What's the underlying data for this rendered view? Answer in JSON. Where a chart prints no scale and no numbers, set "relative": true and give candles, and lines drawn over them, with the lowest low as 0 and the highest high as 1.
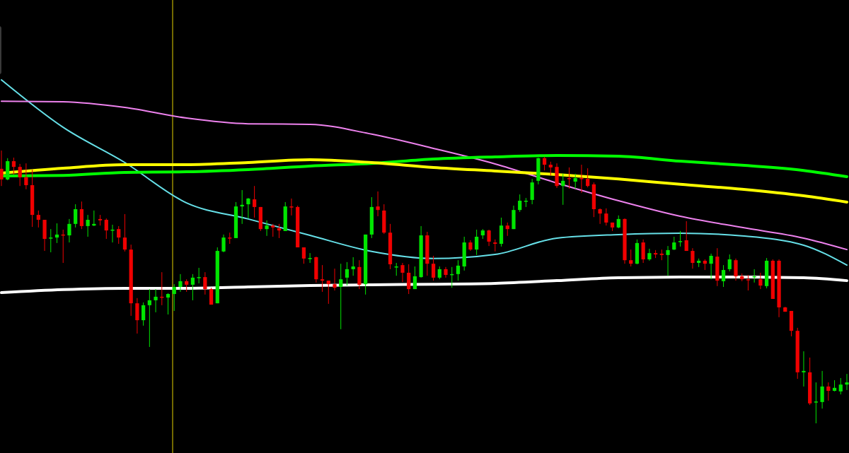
{
  "chart_data": {
    "type": "candlestick",
    "relative": true,
    "categories": [
      null,
      null,
      null,
      null,
      null,
      null,
      null,
      null,
      null,
      null,
      null,
      null,
      null,
      null,
      null,
      null,
      null,
      null,
      null,
      null,
      null,
      null,
      null,
      null,
      null,
      null,
      null,
      null,
      null,
      null,
      null,
      null,
      null,
      null,
      null,
      null,
      null,
      null,
      null,
      null,
      null,
      null,
      null,
      null,
      null,
      null,
      null,
      null,
      null,
      null,
      null,
      null,
      null,
      null,
      null,
      null,
      null,
      null,
      null,
      null,
      null,
      null,
      null,
      null,
      null,
      null,
      null,
      null,
      null,
      null,
      null,
      null,
      null,
      null,
      null,
      null,
      null,
      null,
      null,
      null,
      null,
      null,
      null,
      null,
      null,
      null,
      null,
      null,
      null,
      null,
      null,
      null,
      null,
      null,
      null,
      null,
      null,
      null,
      null,
      null,
      null,
      null,
      null,
      null,
      null,
      null,
      null,
      null,
      null,
      null,
      null,
      null,
      null,
      null,
      null,
      null,
      null,
      null,
      null,
      null,
      null,
      null,
      null,
      null,
      null,
      null,
      null,
      null,
      null,
      null,
      null,
      null,
      null,
      null,
      null,
      null,
      null,
      null
    ],
    "ohlc": [
      [
        0.933,
        1,
        0.87,
        0.894
      ],
      [
        0.894,
        0.972,
        0.891,
        0.961
      ],
      [
        0.961,
        0.974,
        0.912,
        0.94
      ],
      [
        0.94,
        0.951,
        0.87,
        0.902
      ],
      [
        0.902,
        0.953,
        0.858,
        0.873
      ],
      [
        0.873,
        0.93,
        0.72,
        0.764
      ],
      [
        0.764,
        0.78,
        0.718,
        0.746
      ],
      [
        0.746,
        0.746,
        0.632,
        0.676
      ],
      [
        0.679,
        0.712,
        0.627,
        0.681
      ],
      [
        0.681,
        0.733,
        0.661,
        0.692
      ],
      [
        0.692,
        0.71,
        0.588,
        0.689
      ],
      [
        0.689,
        0.749,
        0.663,
        0.731
      ],
      [
        0.731,
        0.803,
        0.718,
        0.785
      ],
      [
        0.785,
        0.813,
        0.712,
        0.723
      ],
      [
        0.723,
        0.764,
        0.684,
        0.746
      ],
      [
        0.725,
        0.78,
        0.723,
        0.731
      ],
      [
        0.749,
        0.764,
        0.725,
        0.744
      ],
      [
        0.746,
        0.751,
        0.676,
        0.707
      ],
      [
        0.707,
        0.728,
        0.663,
        0.71
      ],
      [
        0.712,
        0.723,
        0.658,
        0.681
      ],
      [
        0.681,
        0.767,
        0.63,
        0.637
      ],
      [
        0.637,
        0.655,
        0.394,
        0.44
      ],
      [
        0.44,
        0.459,
        0.329,
        0.378
      ],
      [
        0.378,
        0.443,
        0.358,
        0.433
      ],
      [
        0.433,
        0.492,
        0.28,
        0.451
      ],
      [
        0.451,
        0.492,
        0.407,
        0.464
      ],
      [
        0.464,
        0.554,
        0.433,
        0.461
      ],
      [
        0.461,
        0.477,
        0.399,
        0.474
      ],
      [
        0.474,
        0.51,
        0.412,
        0.5
      ],
      [
        0.5,
        0.547,
        0.482,
        0.521
      ],
      [
        0.521,
        0.528,
        0.482,
        0.508
      ],
      [
        0.508,
        0.547,
        0.451,
        0.534
      ],
      [
        0.534,
        0.57,
        0.513,
        0.536
      ],
      [
        0.536,
        0.554,
        0.472,
        0.492
      ],
      [
        0.492,
        0.497,
        0.435,
        0.435
      ],
      [
        0.44,
        0.645,
        0.44,
        0.632
      ],
      [
        0.63,
        0.692,
        0.627,
        0.681
      ],
      [
        0.681,
        0.699,
        0.658,
        0.679
      ],
      [
        0.679,
        0.811,
        0.679,
        0.795
      ],
      [
        0.795,
        0.855,
        0.731,
        0.801
      ],
      [
        0.803,
        0.826,
        0.751,
        0.824
      ],
      [
        0.821,
        0.87,
        0.754,
        0.793
      ],
      [
        0.793,
        0.793,
        0.705,
        0.712
      ],
      [
        0.712,
        0.744,
        0.687,
        0.725
      ],
      [
        0.725,
        0.731,
        0.684,
        0.718
      ],
      [
        0.715,
        0.731,
        0.679,
        0.707
      ],
      [
        0.705,
        0.811,
        0.705,
        0.795
      ],
      [
        0.795,
        0.824,
        0.762,
        0.793
      ],
      [
        0.793,
        0.798,
        0.645,
        0.645
      ],
      [
        0.645,
        0.645,
        0.585,
        0.604
      ],
      [
        0.604,
        0.624,
        0.588,
        0.606
      ],
      [
        0.609,
        0.611,
        0.516,
        0.528
      ],
      [
        0.528,
        0.58,
        0.482,
        0.523
      ],
      [
        0.523,
        0.523,
        0.438,
        0.51
      ],
      [
        0.51,
        0.567,
        0.487,
        0.497
      ],
      [
        0.5,
        0.585,
        0.345,
        0.528
      ],
      [
        0.534,
        0.591,
        0.505,
        0.565
      ],
      [
        0.565,
        0.609,
        0.541,
        0.575
      ],
      [
        0.573,
        0.598,
        0.492,
        0.508
      ],
      [
        0.51,
        0.692,
        0.472,
        0.692
      ],
      [
        0.692,
        0.829,
        0.679,
        0.793
      ],
      [
        0.795,
        0.85,
        0.759,
        0.782
      ],
      [
        0.78,
        0.803,
        0.694,
        0.699
      ],
      [
        0.699,
        0.731,
        0.565,
        0.583
      ],
      [
        0.573,
        0.588,
        0.541,
        0.575
      ],
      [
        0.58,
        0.588,
        0.518,
        0.552
      ],
      [
        0.552,
        0.583,
        0.474,
        0.492
      ],
      [
        0.492,
        0.575,
        0.492,
        0.539
      ],
      [
        0.536,
        0.723,
        0.534,
        0.689
      ],
      [
        0.689,
        0.702,
        0.541,
        0.585
      ],
      [
        0.585,
        0.614,
        0.523,
        0.534
      ],
      [
        0.534,
        0.575,
        0.528,
        0.565
      ],
      [
        0.565,
        0.573,
        0.534,
        0.544
      ],
      [
        0.544,
        0.573,
        0.497,
        0.547
      ],
      [
        0.547,
        0.598,
        0.523,
        0.578
      ],
      [
        0.575,
        0.684,
        0.56,
        0.663
      ],
      [
        0.663,
        0.671,
        0.632,
        0.637
      ],
      [
        0.637,
        0.71,
        0.617,
        0.684
      ],
      [
        0.689,
        0.712,
        0.676,
        0.707
      ],
      [
        0.707,
        0.71,
        0.65,
        0.666
      ],
      [
        0.663,
        0.674,
        0.63,
        0.658
      ],
      [
        0.658,
        0.754,
        0.648,
        0.725
      ],
      [
        0.725,
        0.736,
        0.687,
        0.712
      ],
      [
        0.712,
        0.798,
        0.712,
        0.782
      ],
      [
        0.782,
        0.839,
        0.775,
        0.816
      ],
      [
        0.813,
        0.826,
        0.793,
        0.816
      ],
      [
        0.819,
        0.896,
        0.803,
        0.883
      ],
      [
        0.889,
        0.974,
        0.876,
        0.972
      ],
      [
        0.972,
        0.977,
        0.927,
        0.948
      ],
      [
        0.948,
        0.959,
        0.909,
        0.938
      ],
      [
        0.94,
        0.953,
        0.863,
        0.87
      ],
      [
        0.87,
        0.915,
        0.801,
        0.889
      ],
      [
        0.899,
        0.938,
        0.86,
        0.896
      ],
      [
        0.886,
        0.915,
        0.86,
        0.899
      ],
      [
        0.899,
        0.948,
        0.845,
        0.896
      ],
      [
        0.896,
        0.935,
        0.865,
        0.87
      ],
      [
        0.876,
        0.883,
        0.756,
        0.785
      ],
      [
        0.785,
        0.788,
        0.731,
        0.769
      ],
      [
        0.769,
        0.788,
        0.725,
        0.736
      ],
      [
        0.736,
        0.736,
        0.705,
        0.718
      ],
      [
        0.718,
        0.762,
        0.715,
        0.749
      ],
      [
        0.749,
        0.751,
        0.585,
        0.598
      ],
      [
        0.598,
        0.637,
        0.575,
        0.585
      ],
      [
        0.585,
        0.674,
        0.583,
        0.661
      ],
      [
        0.663,
        0.674,
        0.588,
        0.601
      ],
      [
        0.601,
        0.64,
        0.596,
        0.624
      ],
      [
        0.624,
        0.635,
        0.606,
        0.619
      ],
      [
        0.622,
        0.637,
        0.598,
        0.617
      ],
      [
        0.617,
        0.65,
        0.541,
        0.635
      ],
      [
        0.637,
        0.684,
        0.635,
        0.663
      ],
      [
        0.666,
        0.705,
        0.648,
        0.668
      ],
      [
        0.671,
        0.741,
        0.632,
        0.632
      ],
      [
        0.632,
        0.642,
        0.567,
        0.588
      ],
      [
        0.588,
        0.604,
        0.573,
        0.596
      ],
      [
        0.596,
        0.601,
        0.562,
        0.585
      ],
      [
        0.585,
        0.622,
        0.528,
        0.614
      ],
      [
        0.611,
        0.642,
        0.503,
        0.523
      ],
      [
        0.521,
        0.58,
        0.5,
        0.562
      ],
      [
        0.565,
        0.619,
        0.557,
        0.601
      ],
      [
        0.598,
        0.604,
        0.523,
        0.539
      ],
      [
        0.539,
        0.549,
        0.521,
        0.528
      ],
      [
        0.528,
        0.544,
        0.487,
        0.526
      ],
      [
        0.536,
        0.565,
        0.516,
        0.539
      ],
      [
        0.528,
        0.552,
        0.492,
        0.505
      ],
      [
        0.503,
        0.606,
        0.495,
        0.596
      ],
      [
        0.596,
        0.601,
        0.456,
        0.456
      ],
      [
        0.596,
        0.601,
        0.389,
        0.425
      ],
      [
        0.425,
        0.427,
        0.409,
        0.409
      ],
      [
        0.412,
        0.412,
        0.319,
        0.339
      ],
      [
        0.339,
        0.35,
        0.163,
        0.187
      ],
      [
        0.187,
        0.264,
        0.135,
        0.192
      ],
      [
        0.187,
        0.241,
        0.067,
        0.073
      ],
      [
        0.078,
        0.15,
        0,
        0.08
      ],
      [
        0.078,
        0.192,
        0.054,
        0.135
      ],
      [
        0.135,
        0.15,
        0.083,
        0.119
      ],
      [
        0.119,
        0.158,
        0.117,
        0.13
      ],
      [
        0.117,
        0.166,
        0.106,
        0.142
      ],
      [
        0.142,
        0.181,
        0.122,
        0.15
      ]
    ],
    "series": [
      {
        "type": "line",
        "color": "#ffffff",
        "values": [
          0.479,
          null,
          null,
          null,
          null,
          null,
          null,
          null,
          null,
          null,
          0.49,
          null,
          null,
          null,
          null,
          null,
          null,
          null,
          null,
          null,
          0.495,
          null,
          null,
          null,
          null,
          null,
          null,
          null,
          null,
          null,
          0.495,
          null,
          null,
          null,
          null,
          null,
          null,
          null,
          null,
          null,
          0.5,
          null,
          null,
          null,
          null,
          null,
          null,
          null,
          null,
          null,
          0.505,
          null,
          null,
          null,
          null,
          null,
          null,
          null,
          null,
          null,
          0.508,
          null,
          null,
          null,
          null,
          null,
          null,
          null,
          null,
          null,
          0.51,
          null,
          null,
          null,
          null,
          null,
          null,
          null,
          null,
          null,
          0.513,
          null,
          null,
          null,
          null,
          null,
          null,
          null,
          null,
          null,
          0.523,
          null,
          null,
          null,
          null,
          null,
          null,
          null,
          null,
          null,
          0.534,
          null,
          null,
          null,
          null,
          null,
          null,
          null,
          null,
          null,
          0.536,
          null,
          null,
          null,
          null,
          null,
          null,
          null,
          null,
          null,
          0.536,
          null,
          null,
          null,
          null,
          null,
          null,
          null,
          null,
          null,
          0.534,
          null,
          null,
          null,
          null,
          null,
          null,
          0.523
        ]
      },
      {
        "type": "line",
        "color": "#66e0e8",
        "values": [
          1.259,
          null,
          null,
          null,
          null,
          null,
          null,
          null,
          null,
          null,
          1.085,
          null,
          null,
          null,
          null,
          null,
          null,
          null,
          null,
          null,
          0.956,
          null,
          null,
          null,
          null,
          null,
          null,
          null,
          null,
          null,
          0.808,
          null,
          null,
          null,
          null,
          null,
          null,
          null,
          null,
          null,
          0.749,
          null,
          null,
          null,
          null,
          null,
          null,
          null,
          null,
          null,
          0.689,
          null,
          null,
          null,
          null,
          null,
          null,
          null,
          null,
          null,
          0.63,
          null,
          null,
          null,
          null,
          null,
          null,
          null,
          null,
          null,
          0.604,
          null,
          null,
          null,
          null,
          null,
          null,
          null,
          null,
          null,
          0.619,
          null,
          null,
          null,
          null,
          null,
          null,
          null,
          null,
          null,
          0.679,
          null,
          null,
          null,
          null,
          null,
          null,
          null,
          null,
          null,
          0.692,
          null,
          null,
          null,
          null,
          null,
          null,
          null,
          null,
          null,
          0.697,
          null,
          null,
          null,
          null,
          null,
          null,
          null,
          null,
          null,
          0.687,
          null,
          null,
          null,
          null,
          null,
          null,
          null,
          null,
          null,
          0.653,
          null,
          null,
          null,
          null,
          null,
          null,
          0.58
        ]
      },
      {
        "type": "line",
        "color": "#ee82ee",
        "values": [
          1.181,
          null,
          null,
          null,
          null,
          null,
          null,
          null,
          null,
          null,
          1.179,
          null,
          null,
          null,
          null,
          null,
          null,
          null,
          null,
          null,
          1.158,
          null,
          null,
          null,
          null,
          null,
          null,
          null,
          null,
          null,
          1.119,
          null,
          null,
          null,
          null,
          null,
          null,
          null,
          null,
          null,
          1.098,
          null,
          null,
          null,
          null,
          null,
          null,
          null,
          null,
          null,
          1.096,
          null,
          null,
          null,
          null,
          null,
          null,
          null,
          null,
          null,
          1.06,
          null,
          null,
          null,
          null,
          null,
          null,
          null,
          null,
          null,
          1.008,
          null,
          null,
          null,
          null,
          null,
          null,
          null,
          null,
          null,
          0.951,
          null,
          null,
          null,
          null,
          null,
          null,
          null,
          null,
          null,
          0.881,
          null,
          null,
          null,
          null,
          null,
          null,
          null,
          null,
          null,
          0.816,
          null,
          null,
          null,
          null,
          null,
          null,
          null,
          null,
          null,
          0.759,
          null,
          null,
          null,
          null,
          null,
          null,
          null,
          null,
          null,
          0.718,
          null,
          null,
          null,
          null,
          null,
          null,
          null,
          null,
          null,
          0.679,
          null,
          null,
          null,
          null,
          null,
          null,
          0.637
        ]
      },
      {
        "type": "line",
        "color": "#00ff00",
        "values": [
          0.907,
          null,
          null,
          null,
          null,
          null,
          null,
          null,
          null,
          null,
          0.909,
          null,
          null,
          null,
          null,
          null,
          null,
          null,
          null,
          null,
          0.92,
          null,
          null,
          null,
          null,
          null,
          null,
          null,
          null,
          null,
          0.922,
          null,
          null,
          null,
          null,
          null,
          null,
          null,
          null,
          null,
          0.93,
          null,
          null,
          null,
          null,
          null,
          null,
          null,
          null,
          null,
          0.943,
          null,
          null,
          null,
          null,
          null,
          null,
          null,
          null,
          null,
          0.953,
          null,
          null,
          null,
          null,
          null,
          null,
          null,
          null,
          null,
          0.969,
          null,
          null,
          null,
          null,
          null,
          null,
          null,
          null,
          null,
          0.977,
          null,
          null,
          null,
          null,
          null,
          null,
          null,
          null,
          null,
          0.982,
          null,
          null,
          null,
          null,
          null,
          null,
          null,
          null,
          null,
          0.979,
          null,
          null,
          null,
          null,
          null,
          null,
          null,
          null,
          null,
          0.961,
          null,
          null,
          null,
          null,
          null,
          null,
          null,
          null,
          null,
          0.946,
          null,
          null,
          null,
          null,
          null,
          null,
          null,
          null,
          null,
          0.927,
          null,
          null,
          null,
          null,
          null,
          null,
          0.904
        ]
      },
      {
        "type": "line",
        "color": "#ffff00",
        "values": [
          0.917,
          null,
          null,
          null,
          null,
          null,
          null,
          null,
          null,
          null,
          0.935,
          null,
          null,
          null,
          null,
          null,
          null,
          null,
          null,
          null,
          0.948,
          null,
          null,
          null,
          null,
          null,
          null,
          null,
          null,
          null,
          0.948,
          null,
          null,
          null,
          null,
          null,
          null,
          null,
          null,
          null,
          0.956,
          null,
          null,
          null,
          null,
          null,
          null,
          null,
          null,
          null,
          0.966,
          null,
          null,
          null,
          null,
          null,
          null,
          null,
          null,
          null,
          0.956,
          null,
          null,
          null,
          null,
          null,
          null,
          null,
          null,
          null,
          0.938,
          null,
          null,
          null,
          null,
          null,
          null,
          null,
          null,
          null,
          0.925,
          null,
          null,
          null,
          null,
          null,
          null,
          null,
          null,
          null,
          0.912,
          null,
          null,
          null,
          null,
          null,
          null,
          null,
          null,
          null,
          0.896,
          null,
          null,
          null,
          null,
          null,
          null,
          null,
          null,
          null,
          0.876,
          null,
          null,
          null,
          null,
          null,
          null,
          null,
          null,
          null,
          0.858,
          null,
          null,
          null,
          null,
          null,
          null,
          null,
          null,
          null,
          0.834,
          null,
          null,
          null,
          null,
          null,
          null,
          0.811
        ]
      }
    ]
  }
}
